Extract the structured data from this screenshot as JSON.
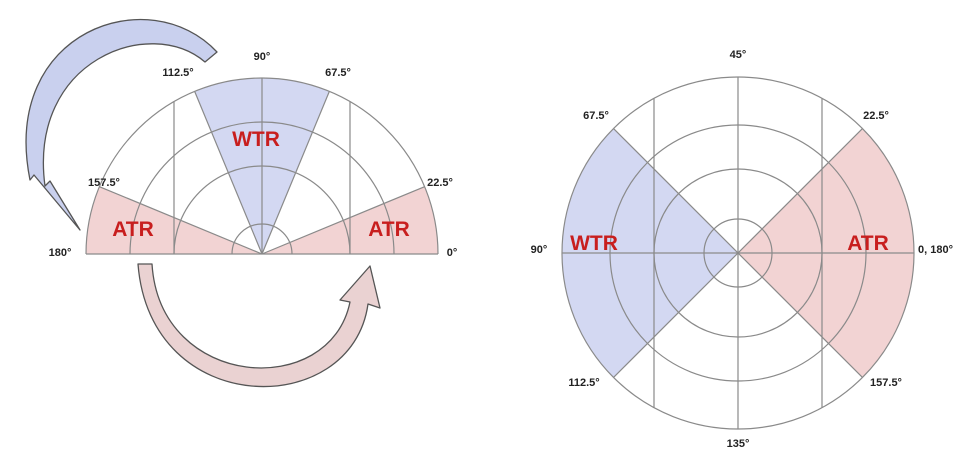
{
  "colors": {
    "wtr_fill": "#d3d8f2",
    "atr_fill": "#f2d3d3",
    "label_red": "#c81e1e",
    "grid_line": "#8a8a8a",
    "arrow_top_fill": "#c9d0ee",
    "arrow_bottom_fill": "#ead2d2",
    "arrow_stroke": "#555555"
  },
  "left_diagram": {
    "angle_labels": {
      "a0": "0°",
      "a22": "22.5°",
      "a67": "67.5°",
      "a90": "90°",
      "a112": "112.5°",
      "a157": "157.5°",
      "a180": "180°"
    },
    "regions": {
      "wtr": "WTR",
      "atr_left": "ATR",
      "atr_right": "ATR"
    },
    "arrows": [
      "curved-arrow-top",
      "curved-arrow-bottom"
    ]
  },
  "right_diagram": {
    "angle_labels": {
      "a45": "45°",
      "a22": "22.5°",
      "a67": "67.5°",
      "a90": "90°",
      "a0_180": "0, 180°",
      "a112": "112.5°",
      "a157": "157.5°",
      "a135": "135°"
    },
    "regions": {
      "wtr": "WTR",
      "atr": "ATR"
    }
  }
}
